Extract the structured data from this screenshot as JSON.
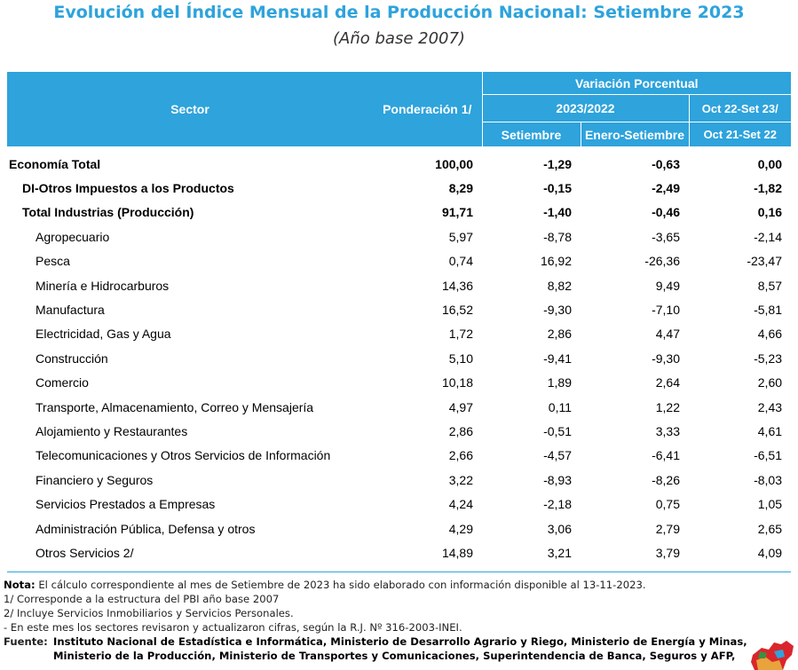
{
  "title": "Evolución del Índice Mensual de la Producción Nacional: Setiembre 2023",
  "subtitle": "(Año base 2007)",
  "table": {
    "headers": {
      "sector": "Sector",
      "ponderacion": "Ponderación 1/",
      "variacion": "Variación Porcentual",
      "period": "2023/2022",
      "oct_top": "Oct 22-Set 23/",
      "setiembre": "Setiembre",
      "enero_setiembre": "Enero-Setiembre",
      "oct_bottom": "Oct 21-Set 22"
    },
    "rows": [
      {
        "sector": "Economía Total",
        "ponderacion": "100,00",
        "setiembre": "-1,29",
        "enero_setiembre": "-0,63",
        "anual": "0,00"
      },
      {
        "sector": "DI-Otros Impuestos a los Productos",
        "ponderacion": "8,29",
        "setiembre": "-0,15",
        "enero_setiembre": "-2,49",
        "anual": "-1,82"
      },
      {
        "sector": "Total  Industrias (Producción)",
        "ponderacion": "91,71",
        "setiembre": "-1,40",
        "enero_setiembre": "-0,46",
        "anual": "0,16"
      },
      {
        "sector": "Agropecuario",
        "ponderacion": "5,97",
        "setiembre": "-8,78",
        "enero_setiembre": "-3,65",
        "anual": "-2,14"
      },
      {
        "sector": "Pesca",
        "ponderacion": "0,74",
        "setiembre": "16,92",
        "enero_setiembre": "-26,36",
        "anual": "-23,47"
      },
      {
        "sector": "Minería e Hidrocarburos",
        "ponderacion": "14,36",
        "setiembre": "8,82",
        "enero_setiembre": "9,49",
        "anual": "8,57"
      },
      {
        "sector": "Manufactura",
        "ponderacion": "16,52",
        "setiembre": "-9,30",
        "enero_setiembre": "-7,10",
        "anual": "-5,81"
      },
      {
        "sector": "Electricidad, Gas y Agua",
        "ponderacion": "1,72",
        "setiembre": "2,86",
        "enero_setiembre": "4,47",
        "anual": "4,66"
      },
      {
        "sector": "Construcción",
        "ponderacion": "5,10",
        "setiembre": "-9,41",
        "enero_setiembre": "-9,30",
        "anual": "-5,23"
      },
      {
        "sector": "Comercio",
        "ponderacion": "10,18",
        "setiembre": "1,89",
        "enero_setiembre": "2,64",
        "anual": "2,60"
      },
      {
        "sector": "Transporte, Almacenamiento, Correo y Mensajería",
        "ponderacion": "4,97",
        "setiembre": "0,11",
        "enero_setiembre": "1,22",
        "anual": "2,43"
      },
      {
        "sector": "Alojamiento y Restaurantes",
        "ponderacion": "2,86",
        "setiembre": "-0,51",
        "enero_setiembre": "3,33",
        "anual": "4,61"
      },
      {
        "sector": "Telecomunicaciones y Otros Servicios de Información",
        "ponderacion": "2,66",
        "setiembre": "-4,57",
        "enero_setiembre": "-6,41",
        "anual": "-6,51"
      },
      {
        "sector": "Financiero y Seguros",
        "ponderacion": "3,22",
        "setiembre": "-8,93",
        "enero_setiembre": "-8,26",
        "anual": "-8,03"
      },
      {
        "sector": "Servicios Prestados a Empresas",
        "ponderacion": "4,24",
        "setiembre": "-2,18",
        "enero_setiembre": "0,75",
        "anual": "1,05"
      },
      {
        "sector": "Administración Pública, Defensa y otros",
        "ponderacion": "4,29",
        "setiembre": "3,06",
        "enero_setiembre": "2,79",
        "anual": "2,65"
      },
      {
        "sector": "Otros Servicios 2/",
        "ponderacion": "14,89",
        "setiembre": "3,21",
        "enero_setiembre": "3,79",
        "anual": "4,09"
      }
    ]
  },
  "notes": {
    "nota_label": "Nota:",
    "nota_text": "El cálculo correspondiente al mes de Setiembre de 2023 ha sido elaborado con información disponible al 13-11-2023.",
    "note1": "1/ Corresponde a la estructura del PBI año base 2007",
    "note2": "2/ Incluye Servicios Inmobiliarios y Servicios Personales.",
    "note3": "- En este mes los sectores revisaron y actualizaron cifras, según la R.J. Nº 316-2003-INEI.",
    "fuente_label": "Fuente:",
    "fuente_line1": "Instituto Nacional de Estadística e Informática, Ministerio de Desarrollo Agrario y Riego, Ministerio de Energía y Minas,",
    "fuente_line2": "Ministerio de la Producción, Ministerio de Transportes y Comunicaciones, Superintendencia de Banca, Seguros y AFP,"
  },
  "logo_icon": "peru-map-icon",
  "colors": {
    "header_bg": "#2EA3DC",
    "title": "#2EA3DC"
  }
}
